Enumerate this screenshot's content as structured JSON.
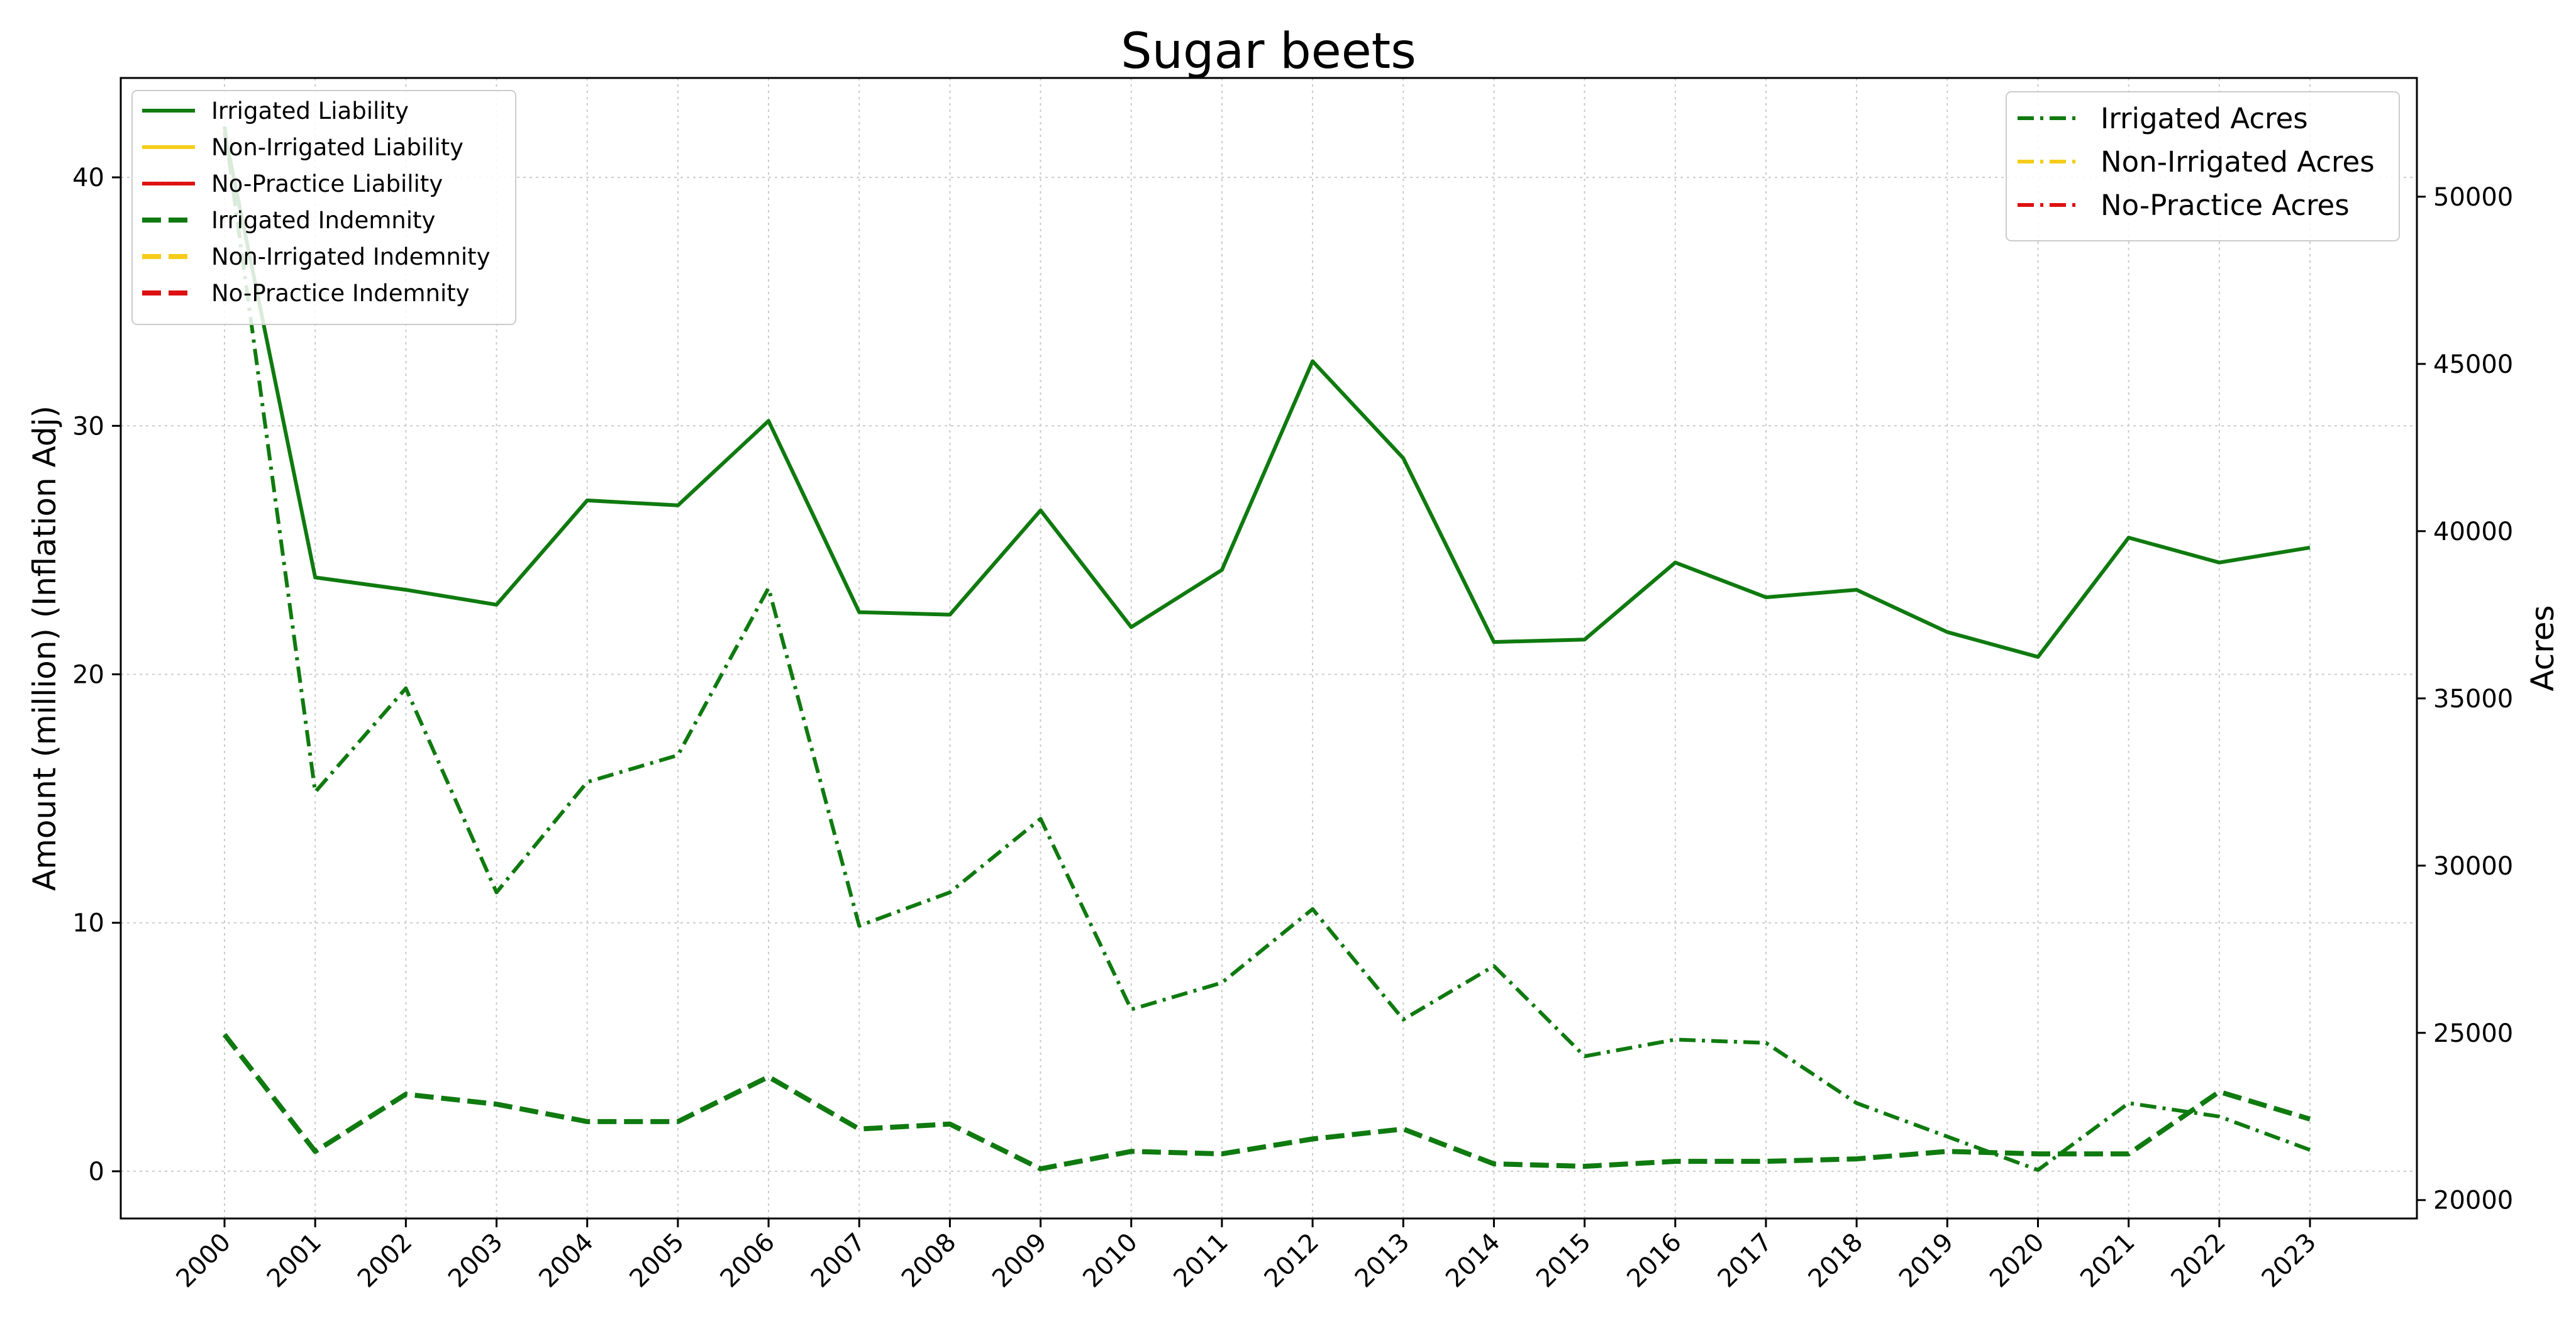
{
  "chart_data": {
    "type": "line",
    "title": "Sugar beets",
    "ylabel_left": "Amount (million) (Inflation Adj)",
    "ylabel_right": "Acres",
    "x": [
      "2000",
      "2001",
      "2002",
      "2003",
      "2004",
      "2005",
      "2006",
      "2007",
      "2008",
      "2009",
      "2010",
      "2011",
      "2012",
      "2013",
      "2014",
      "2015",
      "2016",
      "2017",
      "2018",
      "2019",
      "2020",
      "2021",
      "2022",
      "2023"
    ],
    "ylim_left": [
      -1.9,
      44
    ],
    "yticks_left": [
      0,
      10,
      20,
      30,
      40
    ],
    "ylim_right": [
      19450,
      53550
    ],
    "yticks_right": [
      20000,
      25000,
      30000,
      35000,
      40000,
      45000,
      50000
    ],
    "grid": true,
    "colors": {
      "irrigated": "#0f7a0f",
      "non_irrigated": "#f5cc1b",
      "no_practice": "#dd1111"
    },
    "series_left": [
      {
        "name": "Irrigated Liability",
        "color": "#0f7a0f",
        "style": "solid",
        "values": [
          41.8,
          23.9,
          23.4,
          22.8,
          27.0,
          26.8,
          30.2,
          22.5,
          22.4,
          26.6,
          21.9,
          24.2,
          32.6,
          28.7,
          21.3,
          21.4,
          24.5,
          23.1,
          23.4,
          21.7,
          20.7,
          25.5,
          24.5,
          25.1
        ]
      },
      {
        "name": "Non-Irrigated Liability",
        "color": "#f5cc1b",
        "style": "solid",
        "values": []
      },
      {
        "name": "No-Practice Liability",
        "color": "#dd1111",
        "style": "solid",
        "values": []
      },
      {
        "name": "Irrigated Indemnity",
        "color": "#0f7a0f",
        "style": "dashed",
        "values": [
          5.5,
          0.8,
          3.1,
          2.7,
          2.0,
          2.0,
          3.8,
          1.7,
          1.9,
          0.1,
          0.8,
          0.7,
          1.3,
          1.7,
          0.3,
          0.2,
          0.4,
          0.4,
          0.5,
          0.8,
          0.7,
          0.7,
          3.2,
          2.1
        ]
      }
    ],
    "series_left_legend_extra": [
      {
        "name": "Non-Irrigated Indemnity",
        "color": "#f5cc1b",
        "style": "dashed"
      },
      {
        "name": "No-Practice Indemnity",
        "color": "#dd1111",
        "style": "dashed"
      }
    ],
    "series_right": [
      {
        "name": "Irrigated Acres",
        "color": "#0f7a0f",
        "style": "dashdot",
        "values": [
          52100,
          32200,
          35300,
          29200,
          32500,
          33300,
          38300,
          28200,
          29200,
          31400,
          25700,
          26500,
          28700,
          25400,
          27000,
          24300,
          24800,
          24700,
          22900,
          21900,
          20900,
          22900,
          22500,
          21500
        ]
      },
      {
        "name": "Non-Irrigated Acres",
        "color": "#f5cc1b",
        "style": "dashdot",
        "values": []
      },
      {
        "name": "No-Practice Acres",
        "color": "#dd1111",
        "style": "dashdot",
        "values": []
      }
    ],
    "legend_left_placement": "top-left",
    "legend_right_placement": "top-right"
  }
}
